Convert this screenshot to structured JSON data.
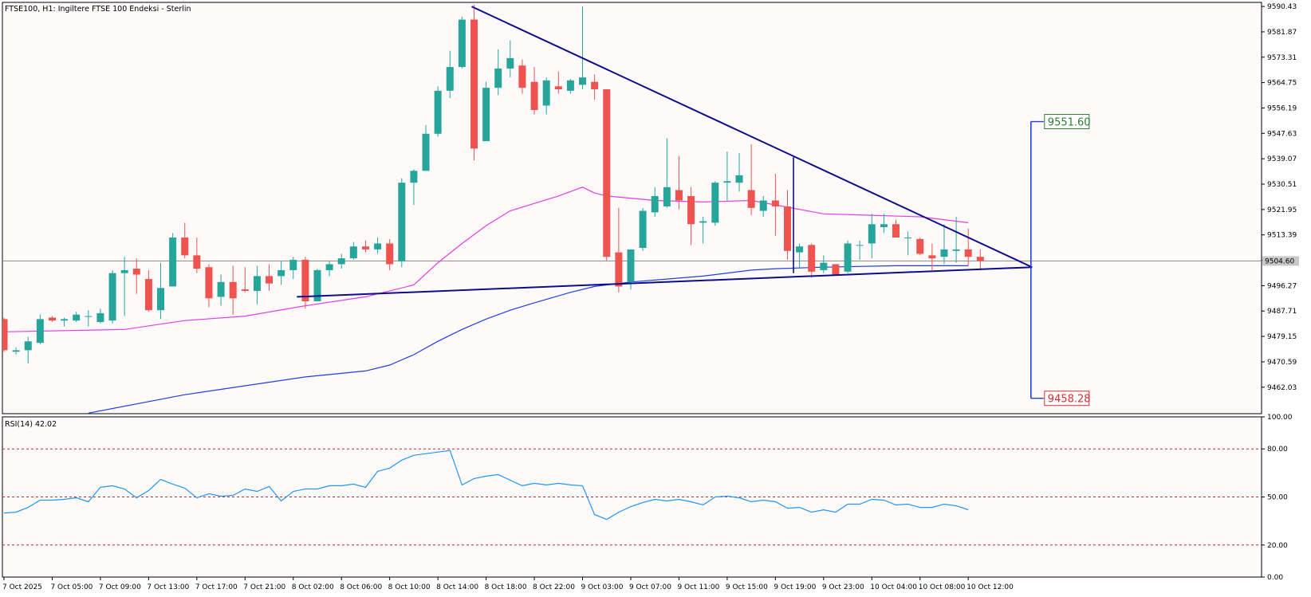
{
  "header": {
    "title": "FTSE100, H1:  Ingiltere FTSE 100 Endeksi - Sterlin",
    "rsi_label": "RSI(14) 42.02"
  },
  "colors": {
    "background": "#fffafa",
    "bull": "#26a69a",
    "bear": "#ef5350",
    "ma_fast": "#e040e0",
    "ma_slow": "#1f3fe0",
    "trendline": "#0d0d8c",
    "rsi": "#2196f3",
    "rsi_levels": "#c62828",
    "target_up": "#2e7d32",
    "target_down": "#d32f2f"
  },
  "chart_data": [
    {
      "type": "candlestick",
      "symbol": "FTSE100",
      "timeframe": "H1",
      "price_axis_ticks": [
        "9590.43",
        "9581.87",
        "9573.31",
        "9564.75",
        "9556.19",
        "9547.63",
        "9539.07",
        "9530.51",
        "9521.95",
        "9513.39",
        "9504.83",
        "9496.27",
        "9487.71",
        "9479.15",
        "9470.59",
        "9462.03"
      ],
      "ylim": [
        9453.1,
        9591.8
      ],
      "time_axis_ticks": [
        "7 Oct 2025",
        "7 Oct 05:00",
        "7 Oct 09:00",
        "7 Oct 13:00",
        "7 Oct 17:00",
        "7 Oct 21:00",
        "8 Oct 02:00",
        "8 Oct 06:00",
        "8 Oct 10:00",
        "8 Oct 14:00",
        "8 Oct 18:00",
        "8 Oct 22:00",
        "9 Oct 03:00",
        "9 Oct 07:00",
        "9 Oct 11:00",
        "9 Oct 15:00",
        "9 Oct 19:00",
        "9 Oct 23:00",
        "10 Oct 04:00",
        "10 Oct 08:00",
        "10 Oct 12:00"
      ],
      "current_price": "9504.60",
      "targets": {
        "upper": "9551.60",
        "lower": "9458.28"
      },
      "candles": [
        [
          9485.0,
          9485.5,
          9474.0,
          9474.5
        ],
        [
          9474.0,
          9475.5,
          9473.0,
          9474.5
        ],
        [
          9474.5,
          9479.0,
          9470.0,
          9477.5
        ],
        [
          9477.0,
          9486.5,
          9476.5,
          9485.0
        ],
        [
          9485.5,
          9486.0,
          9484.0,
          9484.5
        ],
        [
          9484.5,
          9485.5,
          9482.5,
          9485.0
        ],
        [
          9484.5,
          9487.5,
          9484.0,
          9486.5
        ],
        [
          9486.0,
          9488.0,
          9482.5,
          9486.0
        ],
        [
          9484.0,
          9488.5,
          9483.5,
          9487.0
        ],
        [
          9484.5,
          9501.5,
          9483.5,
          9500.5
        ],
        [
          9500.5,
          9506.0,
          9486.0,
          9501.5
        ],
        [
          9502.0,
          9505.5,
          9493.5,
          9500.0
        ],
        [
          9498.5,
          9501.5,
          9487.5,
          9488.0
        ],
        [
          9488.0,
          9504.0,
          9485.0,
          9495.5
        ],
        [
          9496.0,
          9514.0,
          9496.0,
          9512.5
        ],
        [
          9512.5,
          9517.5,
          9505.5,
          9506.5
        ],
        [
          9506.5,
          9512.5,
          9500.5,
          9502.0
        ],
        [
          9502.5,
          9503.5,
          9489.0,
          9492.0
        ],
        [
          9492.5,
          9500.0,
          9489.5,
          9497.5
        ],
        [
          9497.5,
          9503.0,
          9486.5,
          9492.0
        ],
        [
          9495.0,
          9502.5,
          9494.0,
          9494.5
        ],
        [
          9494.5,
          9503.0,
          9490.0,
          9499.5
        ],
        [
          9499.5,
          9503.5,
          9494.5,
          9497.0
        ],
        [
          9499.5,
          9504.5,
          9496.5,
          9501.5
        ],
        [
          9501.5,
          9506.0,
          9498.5,
          9505.0
        ],
        [
          9505.0,
          9506.0,
          9488.5,
          9491.0
        ],
        [
          9491.0,
          9502.0,
          9491.0,
          9501.5
        ],
        [
          9501.5,
          9504.5,
          9499.5,
          9503.5
        ],
        [
          9503.5,
          9507.0,
          9502.0,
          9505.5
        ],
        [
          9505.5,
          9511.0,
          9505.0,
          9509.5
        ],
        [
          9509.5,
          9511.5,
          9507.5,
          9508.5
        ],
        [
          9508.5,
          9512.5,
          9507.0,
          9510.5
        ],
        [
          9510.5,
          9512.0,
          9501.5,
          9503.5
        ],
        [
          9504.5,
          9532.5,
          9502.5,
          9531.0
        ],
        [
          9531.0,
          9535.5,
          9523.5,
          9535.0
        ],
        [
          9535.0,
          9550.5,
          9535.0,
          9547.5
        ],
        [
          9547.5,
          9563.5,
          9546.5,
          9562.0
        ],
        [
          9562.0,
          9575.5,
          9559.5,
          9570.0
        ],
        [
          9570.0,
          9587.0,
          9569.5,
          9586.0
        ],
        [
          9586.0,
          9591.0,
          9538.5,
          9542.5
        ],
        [
          9545.0,
          9565.0,
          9545.0,
          9563.0
        ],
        [
          9563.0,
          9576.0,
          9560.5,
          9569.5
        ],
        [
          9569.5,
          9579.0,
          9566.5,
          9573.0
        ],
        [
          9570.5,
          9572.5,
          9561.0,
          9563.0
        ],
        [
          9565.0,
          9570.0,
          9554.0,
          9555.5
        ],
        [
          9557.0,
          9566.5,
          9554.0,
          9565.5
        ],
        [
          9563.5,
          9568.5,
          9561.0,
          9562.5
        ],
        [
          9562.0,
          9566.0,
          9561.0,
          9565.5
        ],
        [
          9564.0,
          9590.5,
          9562.5,
          9566.5
        ],
        [
          9565.0,
          9567.5,
          9559.0,
          9562.5
        ],
        [
          9562.5,
          9562.5,
          9504.5,
          9506.0
        ],
        [
          9507.5,
          9522.5,
          9494.0,
          9496.0
        ],
        [
          9497.5,
          9508.5,
          9495.0,
          9508.5
        ],
        [
          9509.0,
          9522.5,
          9508.0,
          9521.5
        ],
        [
          9521.0,
          9529.5,
          9519.5,
          9526.5
        ],
        [
          9523.0,
          9546.0,
          9522.5,
          9529.5
        ],
        [
          9528.5,
          9540.0,
          9522.0,
          9525.0
        ],
        [
          9526.5,
          9529.5,
          9510.0,
          9517.0
        ],
        [
          9517.5,
          9519.5,
          9510.5,
          9518.0
        ],
        [
          9517.5,
          9531.5,
          9516.5,
          9531.0
        ],
        [
          9531.0,
          9541.5,
          9525.0,
          9531.5
        ],
        [
          9531.0,
          9541.0,
          9528.0,
          9533.5
        ],
        [
          9528.5,
          9544.0,
          9520.0,
          9522.5
        ],
        [
          9521.5,
          9526.5,
          9519.5,
          9525.0
        ],
        [
          9525.0,
          9534.0,
          9513.0,
          9523.0
        ],
        [
          9523.0,
          9528.5,
          9505.0,
          9508.0
        ],
        [
          9507.5,
          9510.5,
          9502.0,
          9509.5
        ],
        [
          9510.0,
          9510.5,
          9499.0,
          9501.0
        ],
        [
          9501.5,
          9506.5,
          9500.5,
          9504.0
        ],
        [
          9503.5,
          9503.5,
          9501.0,
          9500.0
        ],
        [
          9501.0,
          9511.5,
          9500.5,
          9510.5
        ],
        [
          9510.0,
          9511.5,
          9505.0,
          9510.0
        ],
        [
          9510.5,
          9520.5,
          9505.5,
          9517.0
        ],
        [
          9516.0,
          9520.5,
          9514.0,
          9517.0
        ],
        [
          9517.0,
          9518.5,
          9513.0,
          9512.5
        ],
        [
          9512.5,
          9514.5,
          9506.5,
          9512.5
        ],
        [
          9512.0,
          9512.5,
          9506.5,
          9507.0
        ],
        [
          9506.5,
          9510.5,
          9501.5,
          9505.5
        ],
        [
          9506.0,
          9517.0,
          9503.5,
          9508.5
        ],
        [
          9508.0,
          9519.5,
          9504.0,
          9508.5
        ],
        [
          9508.5,
          9515.5,
          9503.0,
          9506.0
        ],
        [
          9506.0,
          9508.5,
          9501.5,
          9504.6
        ]
      ],
      "ma_fast": [
        [
          0,
          9480.7
        ],
        [
          10,
          9481.5
        ],
        [
          15,
          9484.5
        ],
        [
          20,
          9486.0
        ],
        [
          25,
          9489.5
        ],
        [
          30,
          9492.5
        ],
        [
          34,
          9496.5
        ],
        [
          36,
          9504.0
        ],
        [
          38,
          9510.5
        ],
        [
          40,
          9516.5
        ],
        [
          42,
          9521.5
        ],
        [
          44,
          9524.0
        ],
        [
          46,
          9526.5
        ],
        [
          48,
          9529.5
        ],
        [
          49,
          9527.5
        ],
        [
          50,
          9526.5
        ],
        [
          54,
          9525.0
        ],
        [
          58,
          9524.5
        ],
        [
          62,
          9525.0
        ],
        [
          64,
          9523.5
        ],
        [
          68,
          9520.5
        ],
        [
          72,
          9520.0
        ],
        [
          76,
          9519.5
        ],
        [
          80,
          9517.5
        ]
      ],
      "ma_slow": [
        [
          7,
          9453.3
        ],
        [
          15,
          9459.5
        ],
        [
          20,
          9462.5
        ],
        [
          25,
          9465.5
        ],
        [
          30,
          9467.5
        ],
        [
          32,
          9469.5
        ],
        [
          34,
          9473.0
        ],
        [
          36,
          9477.5
        ],
        [
          38,
          9481.5
        ],
        [
          40,
          9485.0
        ],
        [
          42,
          9488.0
        ],
        [
          44,
          9490.5
        ],
        [
          47,
          9494.0
        ],
        [
          49,
          9496.0
        ],
        [
          52,
          9497.5
        ],
        [
          55,
          9498.5
        ],
        [
          58,
          9499.5
        ],
        [
          62,
          9501.5
        ],
        [
          64,
          9502.0
        ],
        [
          68,
          9502.5
        ],
        [
          74,
          9503.0
        ],
        [
          80,
          9503.0
        ]
      ],
      "trendlines": [
        {
          "from": [
            38.8,
            9590.4
          ],
          "to": [
            85.3,
            9502.5
          ]
        },
        {
          "from": [
            24.3,
            9492.5
          ],
          "to": [
            85.3,
            9502.5
          ]
        }
      ],
      "pattern_lines": [
        {
          "from": [
            65.5,
            9539.6
          ],
          "to": [
            65.5,
            9500.5
          ]
        },
        {
          "from": [
            85.2,
            9551.6
          ],
          "to": [
            85.2,
            9502.5
          ]
        },
        {
          "from": [
            85.2,
            9502.5
          ],
          "to": [
            85.2,
            9458.28
          ]
        }
      ]
    },
    {
      "type": "line",
      "title": "RSI(14) 42.02",
      "ylim": [
        0,
        100
      ],
      "y_ticks": [
        "100.00",
        "80.00",
        "50.00",
        "20.00",
        "0.00"
      ],
      "levels": [
        80,
        50,
        20
      ],
      "values": [
        [
          0,
          40.0
        ],
        [
          1,
          40.5
        ],
        [
          2,
          43.5
        ],
        [
          3,
          48.0
        ],
        [
          4,
          48.0
        ],
        [
          5,
          48.5
        ],
        [
          6,
          49.5
        ],
        [
          7,
          47.0
        ],
        [
          8,
          56.0
        ],
        [
          9,
          57.0
        ],
        [
          10,
          55.0
        ],
        [
          11,
          49.5
        ],
        [
          12,
          54.0
        ],
        [
          13,
          61.0
        ],
        [
          14,
          58.0
        ],
        [
          15,
          55.5
        ],
        [
          16,
          49.5
        ],
        [
          17,
          52.0
        ],
        [
          18,
          50.5
        ],
        [
          19,
          51.0
        ],
        [
          20,
          55.0
        ],
        [
          21,
          53.5
        ],
        [
          22,
          56.5
        ],
        [
          23,
          47.5
        ],
        [
          24,
          53.5
        ],
        [
          25,
          55.0
        ],
        [
          26,
          55.0
        ],
        [
          27,
          57.0
        ],
        [
          28,
          57.0
        ],
        [
          29,
          58.0
        ],
        [
          30,
          56.0
        ],
        [
          31,
          66.0
        ],
        [
          32,
          68.0
        ],
        [
          33,
          73.0
        ],
        [
          34,
          76.0
        ],
        [
          35,
          77.0
        ],
        [
          36,
          78.0
        ],
        [
          37,
          79.0
        ],
        [
          38,
          57.5
        ],
        [
          39,
          61.5
        ],
        [
          40,
          63.0
        ],
        [
          41,
          64.0
        ],
        [
          42,
          60.5
        ],
        [
          43,
          57.0
        ],
        [
          44,
          58.5
        ],
        [
          45,
          57.5
        ],
        [
          46,
          58.5
        ],
        [
          47,
          57.5
        ],
        [
          48,
          57.0
        ],
        [
          49,
          39.0
        ],
        [
          50,
          36.0
        ],
        [
          51,
          40.5
        ],
        [
          52,
          44.0
        ],
        [
          53,
          46.5
        ],
        [
          54,
          48.5
        ],
        [
          55,
          47.5
        ],
        [
          56,
          48.5
        ],
        [
          57,
          47.0
        ],
        [
          58,
          45.0
        ],
        [
          59,
          50.0
        ],
        [
          60,
          50.5
        ],
        [
          61,
          49.5
        ],
        [
          62,
          47.0
        ],
        [
          63,
          48.0
        ],
        [
          64,
          47.0
        ],
        [
          65,
          43.0
        ],
        [
          66,
          43.5
        ],
        [
          67,
          40.5
        ],
        [
          68,
          42.0
        ],
        [
          69,
          40.5
        ],
        [
          70,
          45.5
        ],
        [
          71,
          45.5
        ],
        [
          72,
          48.5
        ],
        [
          73,
          48.0
        ],
        [
          74,
          45.0
        ],
        [
          75,
          45.5
        ],
        [
          76,
          43.5
        ],
        [
          77,
          43.5
        ],
        [
          78,
          45.5
        ],
        [
          79,
          44.5
        ],
        [
          80,
          42.02
        ]
      ]
    }
  ]
}
